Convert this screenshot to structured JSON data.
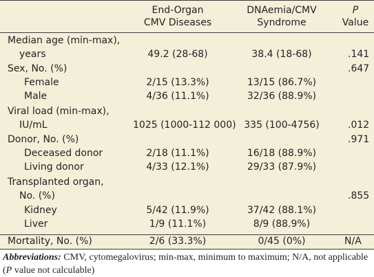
{
  "headers": {
    "col1_line1": "End-Organ",
    "col1_line2": "CMV Diseases",
    "col2_line1": "DNAemia/CMV",
    "col2_line2": "Syndrome",
    "col3_line1": "P",
    "col3_line2": "Value"
  },
  "rows": [
    {
      "label": "Median age (min-max),"
    },
    {
      "label": "years",
      "c1": "49.2 (28-68)",
      "c2": "38.4 (18-68)",
      "p": ".141"
    },
    {
      "label": "Sex, No. (%)",
      "p": ".647"
    },
    {
      "label": "Female",
      "c1": "2/15 (13.3%)",
      "c2": "13/15 (86.7%)"
    },
    {
      "label": "Male",
      "c1": "4/36 (11.1%)",
      "c2": "32/36 (88.9%)"
    },
    {
      "label": "Viral load (min-max),"
    },
    {
      "label": "IU/mL",
      "c1": "1025 (1000-112 000)",
      "c2": "335 (100-4756)",
      "p": ".012"
    },
    {
      "label": "Donor, No. (%)",
      "p": ".971"
    },
    {
      "label": "Deceased donor",
      "c1": "2/18 (11.1%)",
      "c2": "16/18 (88.9%)"
    },
    {
      "label": "Living donor",
      "c1": "4/33 (12.1%)",
      "c2": "29/33 (87.9%)"
    },
    {
      "label": "Transplanted organ,"
    },
    {
      "label": "No. (%)",
      "p": ".855"
    },
    {
      "label": "Kidney",
      "c1": "5/42 (11.9%)",
      "c2": "37/42 (88.1%)"
    },
    {
      "label": "Liver",
      "c1": "1/9 (11.1%)",
      "c2": "8/9 (88.9%)"
    },
    {
      "label": "Mortality, No. (%)",
      "c1": "2/6 (33.3%)",
      "c2": "0/45 (0%)",
      "p": "N/A"
    }
  ],
  "footnote": {
    "label": "Abbreviations:",
    "t1": " CMV, cytomegalovirus; min-max, minimum to maximum; N/A, not applicable (",
    "italic": "P",
    "t2": " value not calculable)"
  }
}
